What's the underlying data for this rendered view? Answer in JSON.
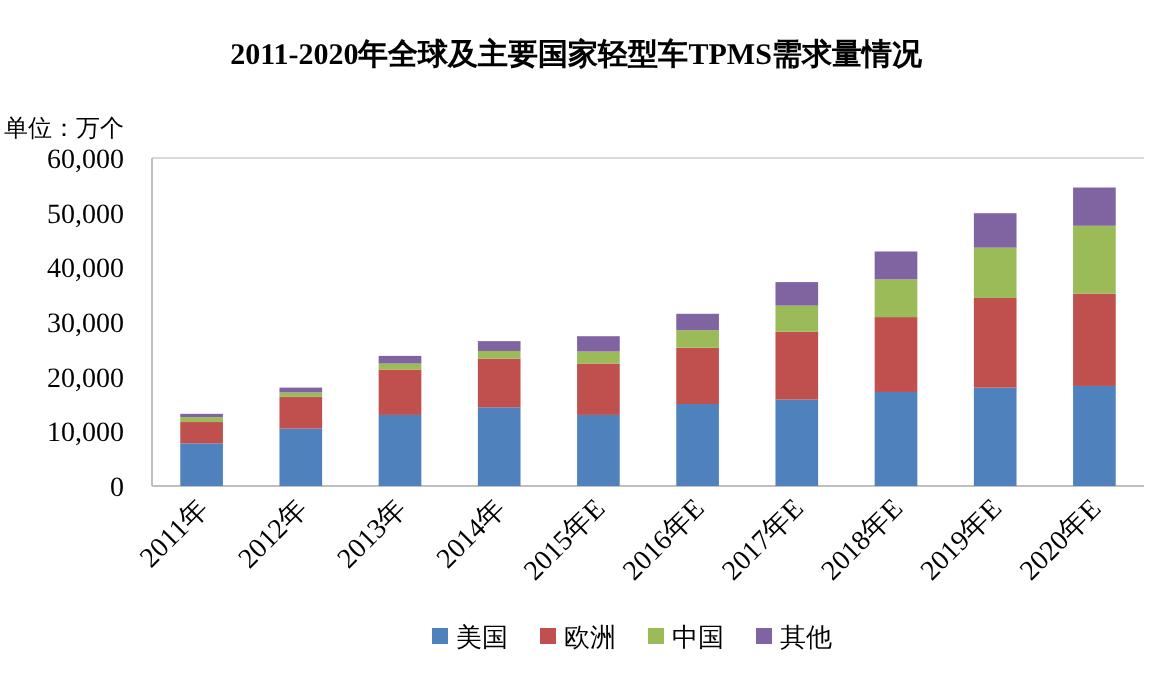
{
  "chart_data": {
    "type": "bar",
    "title": "2011-2020年全球及主要国家轻型车TPMS需求量情况",
    "ylabel": "单位：万个",
    "stacked": true,
    "legend": "bottom",
    "categories": [
      "2011年",
      "2012年",
      "2013年",
      "2014年",
      "2015年E",
      "2016年E",
      "2017年E",
      "2018年E",
      "2019年E",
      "2020年E"
    ],
    "series": [
      {
        "name": "美国",
        "color": "#4f81bd",
        "values": [
          7800,
          10500,
          13000,
          14400,
          13000,
          15000,
          15800,
          17200,
          18000,
          18300
        ]
      },
      {
        "name": "欧洲",
        "color": "#c0504d",
        "values": [
          3900,
          5800,
          8300,
          8900,
          9400,
          10300,
          12400,
          13700,
          16400,
          16900
        ]
      },
      {
        "name": "中国",
        "color": "#9bbb59",
        "values": [
          900,
          800,
          1100,
          1400,
          2200,
          3200,
          4800,
          6900,
          9200,
          12400
        ]
      },
      {
        "name": "其他",
        "color": "#8064a2",
        "values": [
          600,
          900,
          1400,
          1800,
          2800,
          3000,
          4300,
          5100,
          6300,
          7000
        ]
      }
    ],
    "ylim": [
      0,
      60000
    ],
    "yticks": [
      {
        "value": 0,
        "label": "0"
      },
      {
        "value": 10000,
        "label": "10,000"
      },
      {
        "value": 20000,
        "label": "20,000"
      },
      {
        "value": 30000,
        "label": "30,000"
      },
      {
        "value": 40000,
        "label": "40,000"
      },
      {
        "value": 50000,
        "label": "50,000"
      },
      {
        "value": 60000,
        "label": "60,000"
      }
    ]
  }
}
